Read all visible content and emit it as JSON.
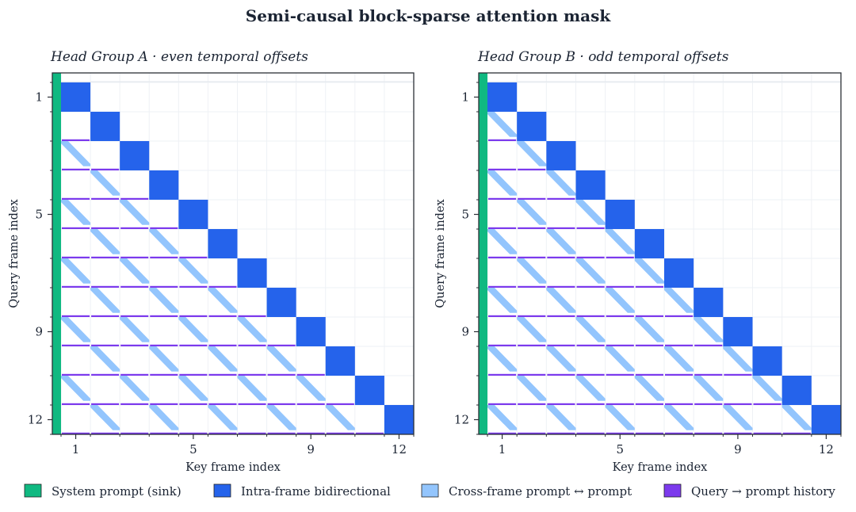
{
  "figure": {
    "title": "Semi-causal block-sparse attention mask"
  },
  "legend": [
    {
      "label": "System prompt (sink)",
      "color": "#10b981"
    },
    {
      "label": "Intra-frame bidirectional",
      "color": "#2563eb"
    },
    {
      "label": "Cross-frame prompt ↔ prompt",
      "color": "#93c5fd"
    },
    {
      "label": "Query → prompt history",
      "color": "#7c3aed"
    }
  ],
  "chart_data": [
    {
      "type": "heatmap",
      "title": "Head Group A  ·  even temporal offsets",
      "xlabel": "Key frame index",
      "ylabel": "Query frame index",
      "n_frames": 12,
      "xticks": [
        1,
        5,
        9,
        12
      ],
      "yticks": [
        1,
        5,
        9,
        12
      ],
      "cross_frame_offsets": "even",
      "sink": "all query frames",
      "intra_frame": "diagonal blocks 1-12",
      "cross_frame": "frame q attends prompt of frame k when k < q and (q - k) is even",
      "query_history": "frame q attends query history of all frames k < q"
    },
    {
      "type": "heatmap",
      "title": "Head Group B  ·  odd temporal offsets",
      "xlabel": "Key frame index",
      "ylabel": "Query frame index",
      "n_frames": 12,
      "xticks": [
        1,
        5,
        9,
        12
      ],
      "yticks": [
        1,
        5,
        9,
        12
      ],
      "cross_frame_offsets": "odd",
      "sink": "all query frames",
      "intra_frame": "diagonal blocks 1-12",
      "cross_frame": "frame q attends prompt of frame k when k < q and (q - k) is odd",
      "query_history": "frame q attends query history of all frames k < q"
    }
  ]
}
